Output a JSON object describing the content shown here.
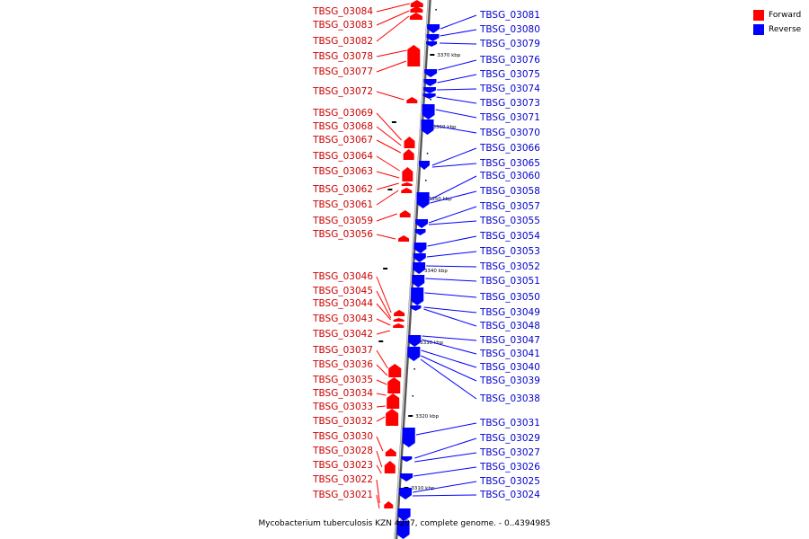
{
  "caption": "Mycobacterium tuberculosis KZN 4207, complete genome. - 0..4394985",
  "legend": {
    "forward_label": "Forward",
    "forward_color": "#ff0000",
    "reverse_label": "Reverse",
    "reverse_color": "#0000ff"
  },
  "colors": {
    "forward": "#ff0000",
    "reverse": "#0000ff",
    "backbone": "#888888"
  },
  "scale_ticks": [
    "3370 kbp",
    "3360 kbp",
    "3350 kbp",
    "3340 kbp",
    "3330 kbp",
    "3320 kbp",
    "3310 kbp"
  ],
  "forward_genes": [
    "TBSG_03084",
    "TBSG_03083",
    "TBSG_03082",
    "TBSG_03078",
    "TBSG_03077",
    "TBSG_03072",
    "TBSG_03069",
    "TBSG_03068",
    "TBSG_03067",
    "TBSG_03064",
    "TBSG_03063",
    "TBSG_03062",
    "TBSG_03061",
    "TBSG_03059",
    "TBSG_03056",
    "TBSG_03046",
    "TBSG_03045",
    "TBSG_03044",
    "TBSG_03043",
    "TBSG_03042",
    "TBSG_03037",
    "TBSG_03036",
    "TBSG_03035",
    "TBSG_03034",
    "TBSG_03033",
    "TBSG_03032",
    "TBSG_03030",
    "TBSG_03028",
    "TBSG_03023",
    "TBSG_03022",
    "TBSG_03021"
  ],
  "reverse_genes": [
    "TBSG_03081",
    "TBSG_03080",
    "TBSG_03079",
    "TBSG_03076",
    "TBSG_03075",
    "TBSG_03074",
    "TBSG_03073",
    "TBSG_03071",
    "TBSG_03070",
    "TBSG_03066",
    "TBSG_03065",
    "TBSG_03060",
    "TBSG_03058",
    "TBSG_03057",
    "TBSG_03055",
    "TBSG_03054",
    "TBSG_03053",
    "TBSG_03052",
    "TBSG_03051",
    "TBSG_03050",
    "TBSG_03049",
    "TBSG_03048",
    "TBSG_03047",
    "TBSG_03041",
    "TBSG_03040",
    "TBSG_03039",
    "TBSG_03038",
    "TBSG_03031",
    "TBSG_03029",
    "TBSG_03027",
    "TBSG_03026",
    "TBSG_03025",
    "TBSG_03024"
  ]
}
